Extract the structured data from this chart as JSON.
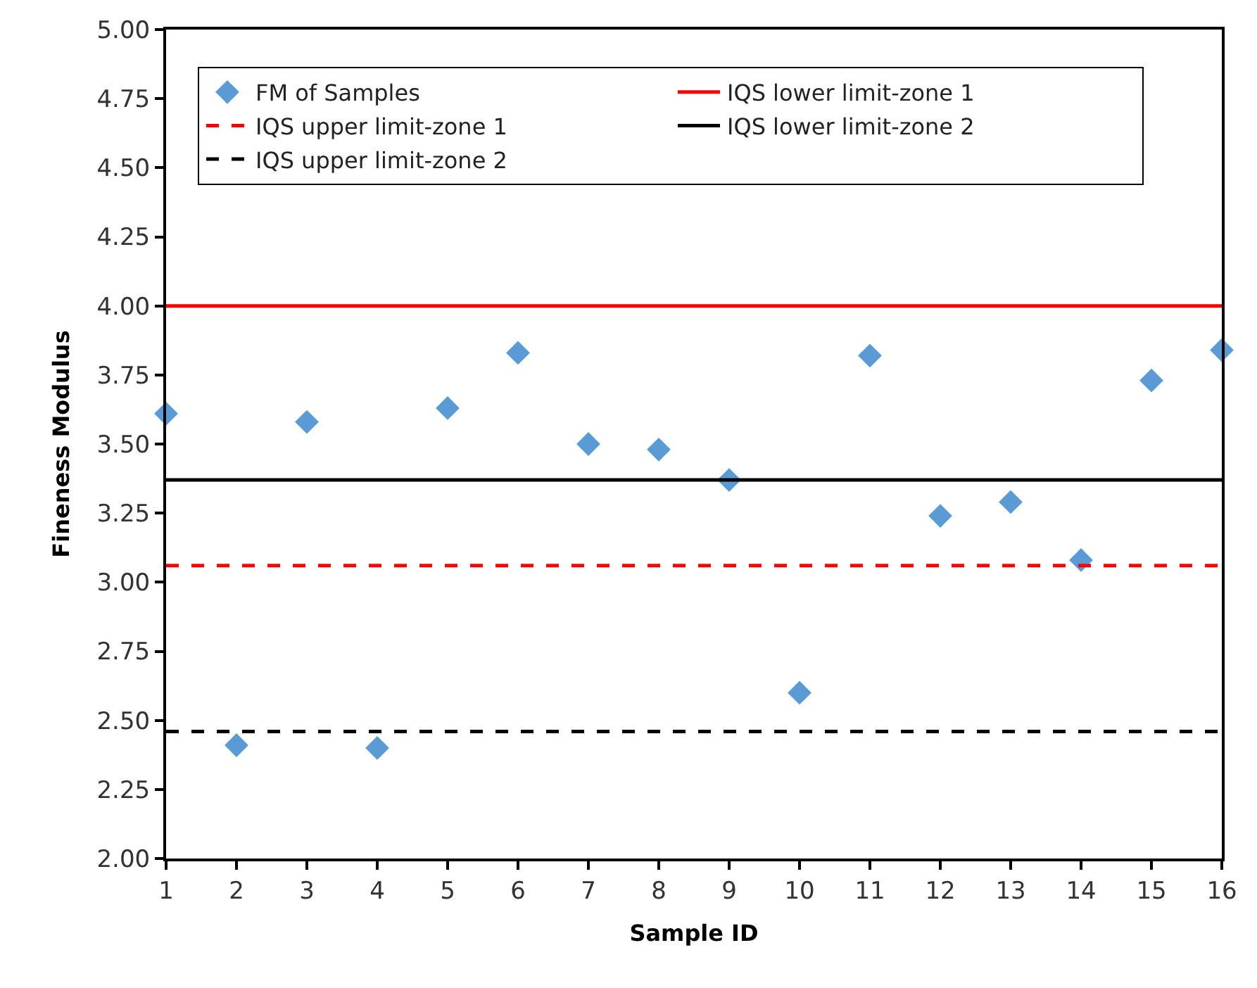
{
  "chart_data": {
    "type": "scatter",
    "xlabel": "Sample ID",
    "ylabel": "Fineness Modulus",
    "x": [
      1,
      2,
      3,
      4,
      5,
      6,
      7,
      8,
      9,
      10,
      11,
      12,
      13,
      14,
      15,
      16
    ],
    "series": [
      {
        "name": "FM of Samples",
        "color": "#5b9bd5",
        "values": [
          3.61,
          2.41,
          3.58,
          2.4,
          3.63,
          3.83,
          3.5,
          3.48,
          3.37,
          2.6,
          3.82,
          3.24,
          3.29,
          3.08,
          3.73,
          3.84
        ]
      }
    ],
    "marker": "diamond",
    "xlim": [
      1,
      16
    ],
    "xticks": [
      1,
      2,
      3,
      4,
      5,
      6,
      7,
      8,
      9,
      10,
      11,
      12,
      13,
      14,
      15,
      16
    ],
    "ylim": [
      2,
      5
    ],
    "yticks": [
      {
        "value": 2,
        "label": "2.00"
      },
      {
        "value": 2.25,
        "label": "2.25"
      },
      {
        "value": 2.5,
        "label": "2.50"
      },
      {
        "value": 2.75,
        "label": "2.75"
      },
      {
        "value": 3,
        "label": "3.00"
      },
      {
        "value": 3.25,
        "label": "3.25"
      },
      {
        "value": 3.5,
        "label": "3.50"
      },
      {
        "value": 3.75,
        "label": "3.75"
      },
      {
        "value": 4,
        "label": "4.00"
      },
      {
        "value": 4.25,
        "label": "4.25"
      },
      {
        "value": 4.5,
        "label": "4.50"
      },
      {
        "value": 4.75,
        "label": "4.75"
      },
      {
        "value": 5,
        "label": "5.00"
      }
    ],
    "ref_lines": [
      {
        "axis": "y",
        "value": 4.0,
        "label": "IQS lower limit-zone 1",
        "color": "#ff0000",
        "line_style": "solid"
      },
      {
        "axis": "y",
        "value": 3.06,
        "label": "IQS upper limit-zone 1",
        "color": "#ff0000",
        "line_style": "dashed"
      },
      {
        "axis": "y",
        "value": 3.37,
        "label": "IQS lower limit-zone 2",
        "color": "#000000",
        "line_style": "solid"
      },
      {
        "axis": "y",
        "value": 2.46,
        "label": "IQS upper limit-zone 2",
        "color": "#000000",
        "line_style": "dashed"
      }
    ],
    "legend": "top"
  }
}
